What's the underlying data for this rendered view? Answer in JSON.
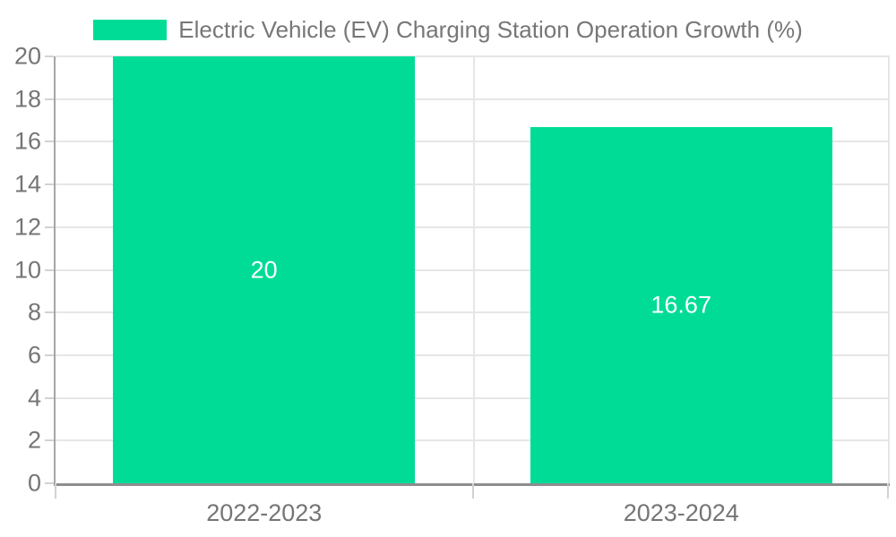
{
  "chart_data": {
    "type": "bar",
    "title": "",
    "categories": [
      "2022-2023",
      "2023-2024"
    ],
    "values": [
      20,
      16.67
    ],
    "bar_labels": [
      "20",
      "16.67"
    ],
    "legend_entries": [
      "Electric Vehicle (EV) Charging Station Operation Growth (%)"
    ],
    "legend_position": "top-center",
    "xlabel": "",
    "ylabel": "",
    "ylim": [
      0,
      20
    ],
    "yticks": [
      0,
      2,
      4,
      6,
      8,
      10,
      12,
      14,
      16,
      18,
      20
    ],
    "grid": "on",
    "bar_width_fraction": 0.724,
    "colors": {
      "bar": "#00DC96",
      "bar_label_text": "#FFFFFF",
      "tick_label_text": "#757575",
      "legend_text": "#777777",
      "grid_line": "#E6E6E6",
      "spine_left": "#A6A6A6",
      "spine_bottom": "#8D8D8D",
      "tick_mark": "#D2D2D2",
      "background": "#FFFFFF"
    }
  }
}
